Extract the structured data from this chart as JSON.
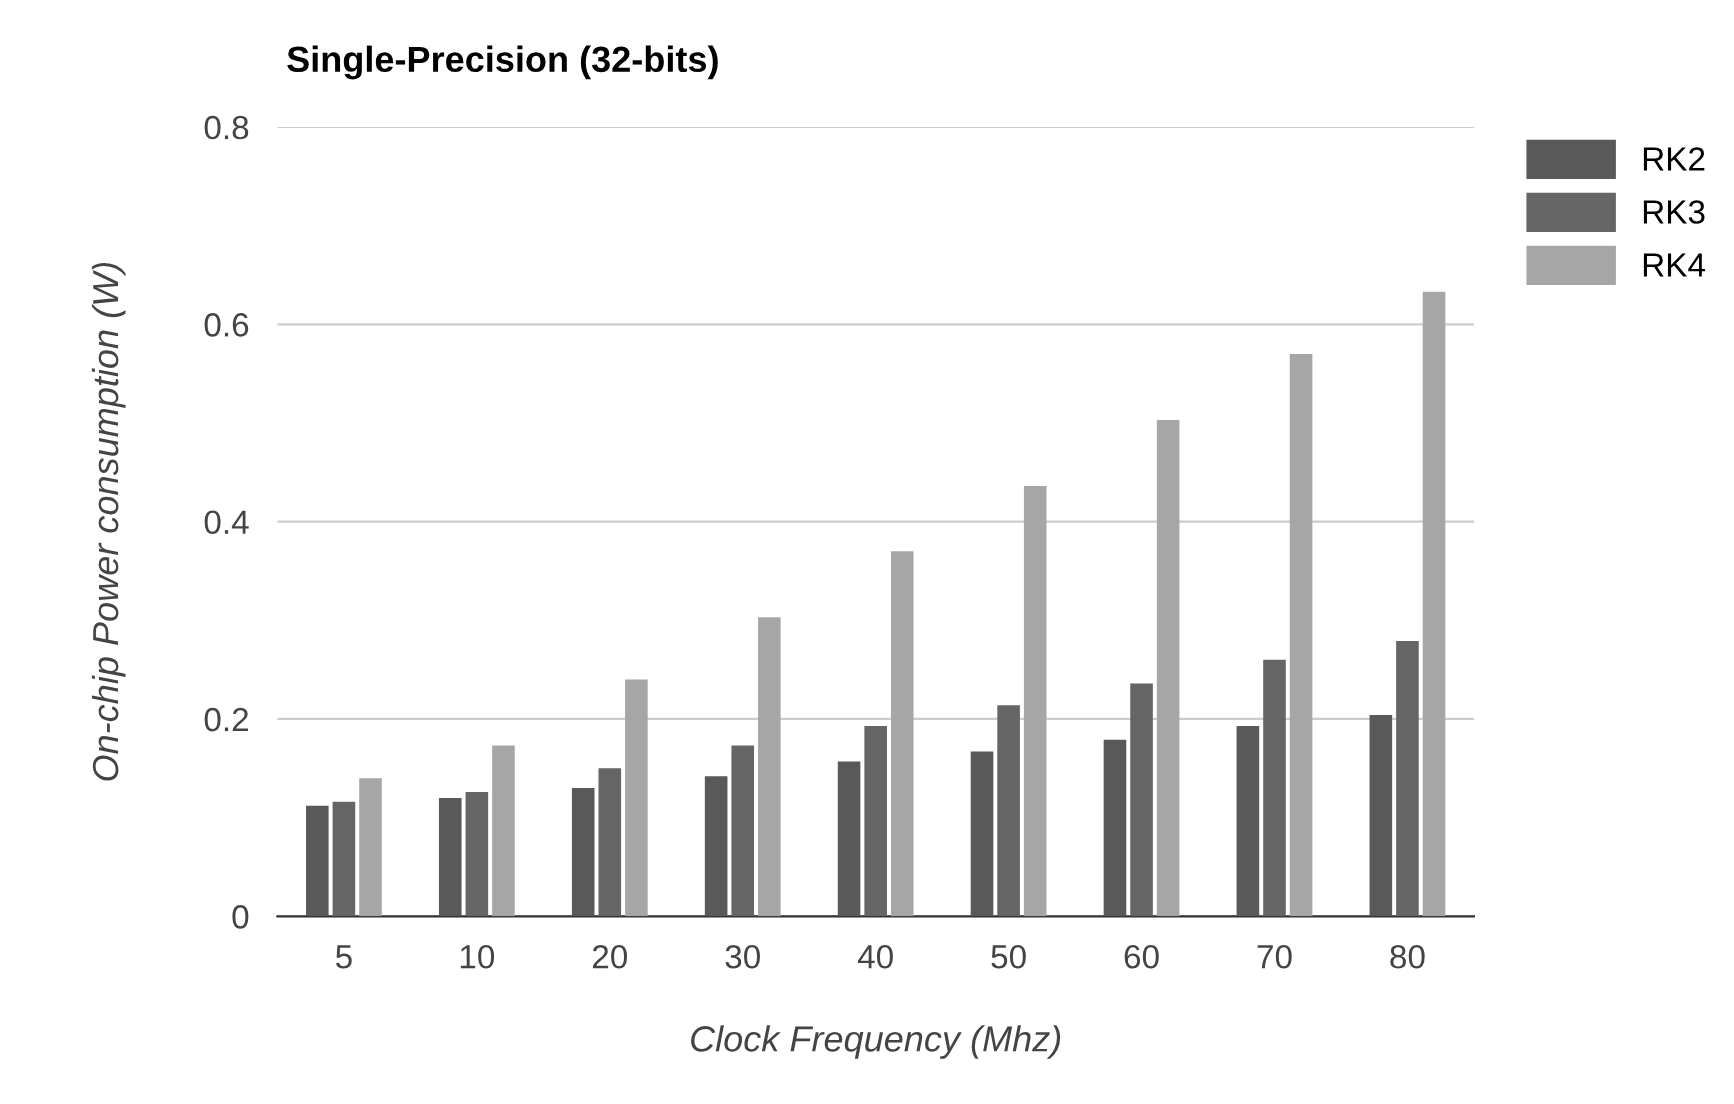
{
  "chart_data": {
    "type": "bar",
    "title": "Single-Precision (32-bits)",
    "xlabel": "Clock Frequency (Mhz)",
    "ylabel": "On-chip Power consumption (W)",
    "categories": [
      "5",
      "10",
      "20",
      "30",
      "40",
      "50",
      "60",
      "70",
      "80"
    ],
    "series": [
      {
        "name": "RK2",
        "color": "#595959",
        "values": [
          0.112,
          0.12,
          0.13,
          0.142,
          0.157,
          0.167,
          0.179,
          0.193,
          0.204
        ]
      },
      {
        "name": "RK3",
        "color": "#656565",
        "values": [
          0.116,
          0.126,
          0.15,
          0.173,
          0.193,
          0.214,
          0.236,
          0.26,
          0.279
        ]
      },
      {
        "name": "RK4",
        "color": "#a6a6a6",
        "values": [
          0.14,
          0.173,
          0.24,
          0.303,
          0.37,
          0.436,
          0.503,
          0.57,
          0.633
        ]
      }
    ],
    "ylim": [
      0,
      0.8
    ],
    "yticks": [
      {
        "value": 0,
        "label": "0"
      },
      0.2,
      0.4,
      0.6,
      0.8
    ],
    "grid": "y",
    "legend": "top right"
  }
}
